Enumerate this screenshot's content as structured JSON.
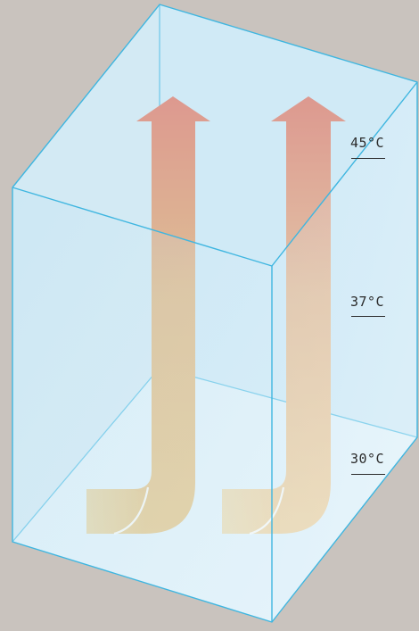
{
  "temperatures": {
    "top": "45°C",
    "middle": "37°C",
    "bottom": "30°C"
  },
  "colors": {
    "background": "#c9c3be",
    "box_edge": "#3fb6e0",
    "box_face": "#cdeaf8",
    "flow_hot": "#e06a55",
    "flow_warm": "#e2a55e",
    "flow_cool": "#e8c272",
    "inlet_pale": "#e6d9a8",
    "label_text": "#2b2b2b"
  },
  "icons": {
    "flow": "up-arrow-icon",
    "inlet": "j-bend-pipe-icon"
  }
}
